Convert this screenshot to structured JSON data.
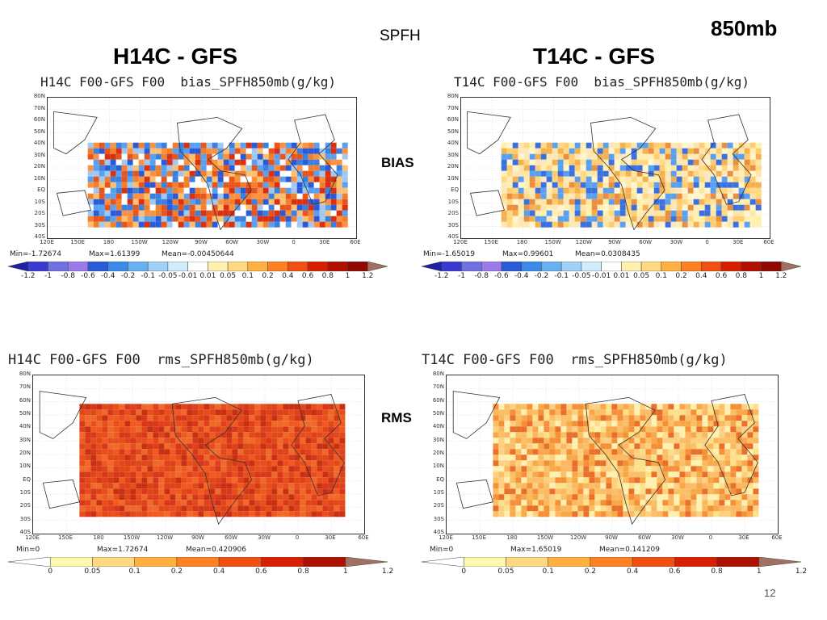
{
  "slide": {
    "title": "SPFH",
    "level": "850mb",
    "page_number": "12",
    "col_left": "H14C - GFS",
    "col_right": "T14C - GFS",
    "row_bias": "BIAS",
    "row_rms": "RMS"
  },
  "axes": {
    "lat_labels": [
      "80N",
      "70N",
      "60N",
      "50N",
      "40N",
      "30N",
      "20N",
      "10N",
      "EQ",
      "10S",
      "20S",
      "30S",
      "40S"
    ],
    "lon_labels": [
      "120E",
      "150E",
      "180",
      "150W",
      "120W",
      "90W",
      "60W",
      "30W",
      "0",
      "30E",
      "60E"
    ]
  },
  "panels": {
    "h_bias": {
      "title": "H14C F00-GFS F00  bias_SPFH850mb(g/kg)",
      "min": "Min=-1.72674",
      "max": "Max=1.61399",
      "mean": "Mean=-0.00450644"
    },
    "t_bias": {
      "title": "T14C F00-GFS F00  bias_SPFH850mb(g/kg)",
      "min": "Min=-1.65019",
      "max": "Max=0.99601",
      "mean": "Mean=0.0308435"
    },
    "h_rms": {
      "title": "H14C F00-GFS F00  rms_SPFH850mb(g/kg)",
      "min": "Min=0",
      "max": "Max=1.72674",
      "mean": "Mean=0.420906"
    },
    "t_rms": {
      "title": "T14C F00-GFS F00  rms_SPFH850mb(g/kg)",
      "min": "Min=0",
      "max": "Max=1.65019",
      "mean": "Mean=0.141209"
    }
  },
  "bias_colorbar": {
    "labels": [
      "-1.2",
      "-1",
      "-0.8",
      "-0.6",
      "-0.4",
      "-0.2",
      "-0.1",
      "-0.05",
      "-0.01",
      "0.01",
      "0.05",
      "0.1",
      "0.2",
      "0.4",
      "0.6",
      "0.8",
      "1",
      "1.2"
    ],
    "colors": [
      "#2020a0",
      "#3a3ad0",
      "#7070e0",
      "#9a7ae8",
      "#2a5ad8",
      "#3a8ae8",
      "#6ab0f0",
      "#a0d0f8",
      "#d0ecfa",
      "#ffffff",
      "#fff0b0",
      "#ffd880",
      "#ffb040",
      "#ff8020",
      "#f05010",
      "#d82000",
      "#b01000",
      "#900800",
      "#a07060"
    ]
  },
  "rms_colorbar": {
    "labels": [
      "0",
      "0.05",
      "0.1",
      "0.2",
      "0.4",
      "0.6",
      "0.8",
      "1",
      "1.2"
    ],
    "colors": [
      "#ffffff",
      "#fff6b0",
      "#ffd880",
      "#ffb040",
      "#ff8020",
      "#f05010",
      "#d82000",
      "#b01000",
      "#a07060"
    ]
  },
  "colors": {
    "bias_warm": "#e8541a",
    "bias_cool": "#3a80e0",
    "bias_pale": "#fde6a8",
    "rms_strong": "#e0401a",
    "rms_light": "#fbc066",
    "land_outline": "#333333"
  }
}
